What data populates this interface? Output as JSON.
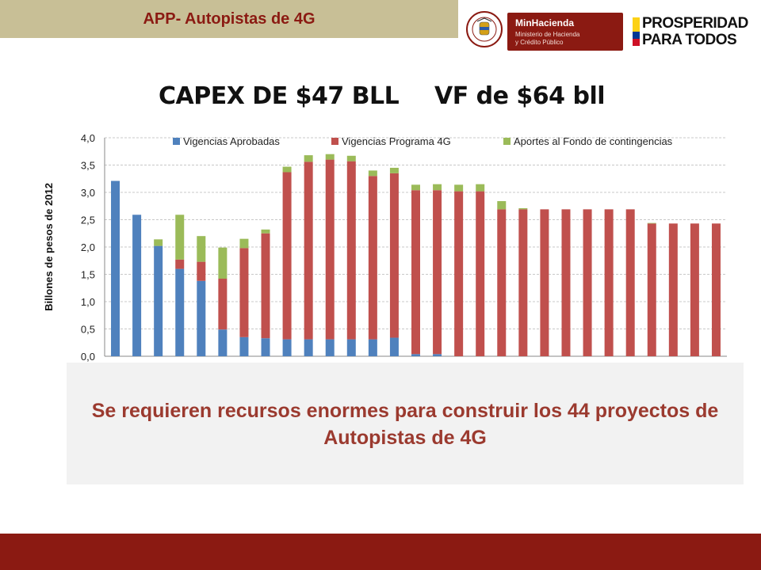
{
  "header": {
    "title": "APP- Autopistas de 4G",
    "logo_ministry_name": "MinHacienda",
    "logo_ministry_line1": "Ministerio de Hacienda",
    "logo_ministry_line2": "y Crédito Público",
    "logo_seal_text": "REPÚBLICA DE COLOMBIA",
    "slogan_line1": "PROSPERIDAD",
    "slogan_line2": "PARA TODOS"
  },
  "heading": {
    "capex": "CAPEX  DE $47 BLL",
    "vf": "VF de $64 bll"
  },
  "callout": {
    "text": "Se requieren recursos enormes para construir los 44 proyectos de Autopistas de 4G"
  },
  "colors": {
    "header_bg": "#c8bf96",
    "brand_red": "#8b1a12",
    "series_blue": "#4f81bd",
    "series_red": "#c0504d",
    "series_green": "#9bbb59",
    "callout_text": "#9b3a2f"
  },
  "chart_data": {
    "type": "bar",
    "stacked": true,
    "ylabel": "Billones de pesos de 2012",
    "ylim": [
      0,
      4.0
    ],
    "yticks": [
      "0,0",
      "0,5",
      "1,0",
      "1,5",
      "2,0",
      "2,5",
      "3,0",
      "3,5",
      "4,0"
    ],
    "grid": true,
    "legend_position": "top",
    "categories_count": 29,
    "series": [
      {
        "name": "Vigencias Aprobadas",
        "color": "#4f81bd",
        "values": [
          3.21,
          2.59,
          2.02,
          1.6,
          1.38,
          0.49,
          0.35,
          0.33,
          0.31,
          0.31,
          0.31,
          0.31,
          0.31,
          0.34,
          0.04,
          0.04,
          0,
          0,
          0,
          0,
          0,
          0,
          0,
          0,
          0,
          0,
          0,
          0,
          0
        ]
      },
      {
        "name": "Vigencias Programa 4G",
        "color": "#c0504d",
        "values": [
          0,
          0,
          0,
          0.17,
          0.35,
          0.93,
          1.63,
          1.92,
          3.06,
          3.25,
          3.29,
          3.26,
          2.99,
          3.01,
          3.0,
          3.0,
          3.02,
          3.02,
          2.69,
          2.69,
          2.69,
          2.69,
          2.69,
          2.69,
          2.69,
          2.43,
          2.43,
          2.43,
          2.43
        ]
      },
      {
        "name": "Aportes al Fondo de contingencias",
        "color": "#9bbb59",
        "values": [
          0,
          0,
          0.12,
          0.82,
          0.47,
          0.57,
          0.17,
          0.07,
          0.1,
          0.12,
          0.1,
          0.1,
          0.1,
          0.1,
          0.1,
          0.11,
          0.12,
          0.13,
          0.15,
          0.02,
          0,
          0,
          0,
          0,
          0,
          0.01,
          0,
          0,
          0
        ]
      }
    ]
  }
}
